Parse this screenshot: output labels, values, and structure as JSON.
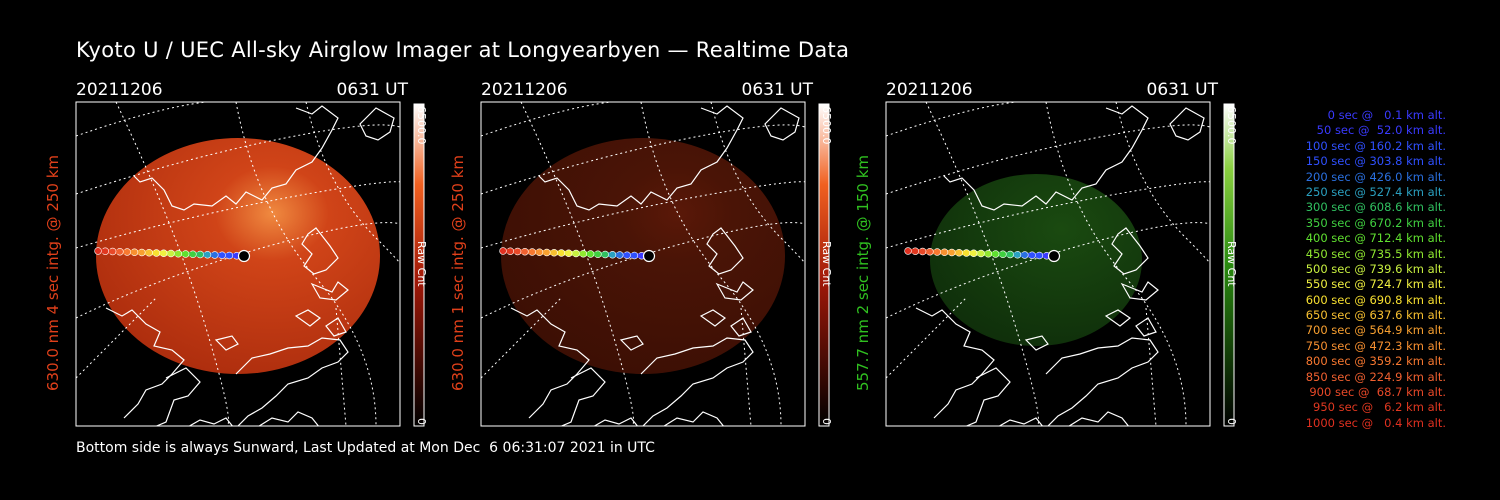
{
  "title": "Kyoto U / UEC All-sky Airglow Imager at Longyearbyen — Realtime Data",
  "footer": "Bottom side is always Sunward, Last Updated at Mon Dec  6 06:31:07 2021 in UTC",
  "panels": [
    {
      "date": "20211206",
      "time": "0631 UT",
      "ylabel": "630.0 nm 4 sec intg. @ 250 km",
      "label_color": "#e0401a",
      "cb_max": "6500.0",
      "cb_min": "0",
      "cb_label": "Raw Cnt",
      "palette": "red",
      "brightness": 1.0
    },
    {
      "date": "20211206",
      "time": "0631 UT",
      "ylabel": "630.0 nm 1 sec intg. @ 250 km",
      "label_color": "#e0401a",
      "cb_max": "6500.0",
      "cb_min": "0",
      "cb_label": "Raw Cnt",
      "palette": "red",
      "brightness": 0.45
    },
    {
      "date": "20211206",
      "time": "0631 UT",
      "ylabel": "557.7 nm 2 sec intg. @ 150 km",
      "label_color": "#30c020",
      "cb_max": "6500.0",
      "cb_min": "0",
      "cb_label": "Raw Cnt",
      "palette": "green",
      "brightness": 0.5
    }
  ],
  "legend": [
    {
      "text": "0 sec @   0.1 km alt.",
      "color": "#3a3aff"
    },
    {
      "text": "50 sec @  52.0 km alt.",
      "color": "#3a3aff"
    },
    {
      "text": "100 sec @ 160.2 km alt.",
      "color": "#2f50ff"
    },
    {
      "text": "150 sec @ 303.8 km alt.",
      "color": "#2f50ff"
    },
    {
      "text": "200 sec @ 426.0 km alt.",
      "color": "#2a70e0"
    },
    {
      "text": "250 sec @ 527.4 km alt.",
      "color": "#2aa0c0"
    },
    {
      "text": "300 sec @ 608.6 km alt.",
      "color": "#30c060"
    },
    {
      "text": "350 sec @ 670.2 km alt.",
      "color": "#40d040"
    },
    {
      "text": "400 sec @ 712.4 km alt.",
      "color": "#60e030"
    },
    {
      "text": "450 sec @ 735.5 km alt.",
      "color": "#90e830"
    },
    {
      "text": "500 sec @ 739.6 km alt.",
      "color": "#c8f040"
    },
    {
      "text": "550 sec @ 724.7 km alt.",
      "color": "#f0f040"
    },
    {
      "text": "600 sec @ 690.8 km alt.",
      "color": "#f8e030"
    },
    {
      "text": "650 sec @ 637.6 km alt.",
      "color": "#f8c030"
    },
    {
      "text": "700 sec @ 564.9 km alt.",
      "color": "#f8a030"
    },
    {
      "text": "750 sec @ 472.3 km alt.",
      "color": "#f89030"
    },
    {
      "text": "800 sec @ 359.2 km alt.",
      "color": "#f87830"
    },
    {
      "text": "850 sec @ 224.9 km alt.",
      "color": "#f06030"
    },
    {
      "text": "900 sec @  68.7 km alt.",
      "color": "#e84828"
    },
    {
      "text": "950 sec @   6.2 km alt.",
      "color": "#e03820"
    },
    {
      "text": "1000 sec @   0.4 km alt.",
      "color": "#e03020"
    }
  ],
  "chart_data": {
    "type": "image-panels",
    "trajectory": {
      "time_sec": [
        0,
        50,
        100,
        150,
        200,
        250,
        300,
        350,
        400,
        450,
        500,
        550,
        600,
        650,
        700,
        750,
        800,
        850,
        900,
        950,
        1000
      ],
      "altitude_km": [
        0.1,
        52.0,
        160.2,
        303.8,
        426.0,
        527.4,
        608.6,
        670.2,
        712.4,
        735.5,
        739.6,
        724.7,
        690.8,
        637.6,
        564.9,
        472.3,
        359.2,
        224.9,
        68.7,
        6.2,
        0.4
      ]
    },
    "colorbar_range": [
      0,
      6500.0
    ],
    "colorbar_unit": "Raw Cnt"
  }
}
